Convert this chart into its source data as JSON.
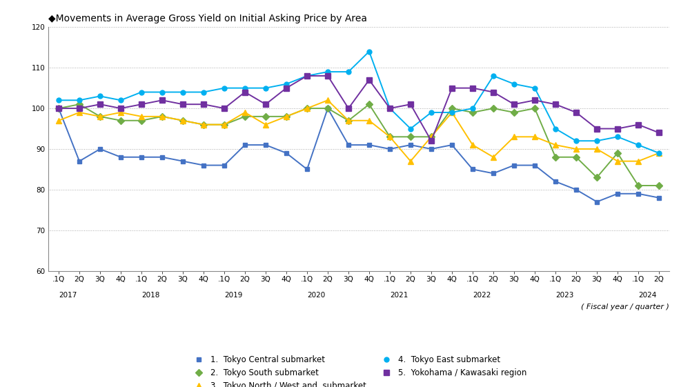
{
  "title": "◆Movements in Average Gross Yield on Initial Asking Price by Area",
  "xlabel": "( Fiscal year / quarter )",
  "ylim": [
    60,
    120
  ],
  "yticks": [
    60,
    70,
    80,
    90,
    100,
    110,
    120
  ],
  "years": [
    2017,
    2018,
    2019,
    2020,
    2021,
    2022,
    2023,
    2024
  ],
  "year_positions": [
    0,
    4,
    8,
    12,
    16,
    20,
    24,
    28
  ],
  "quarters": [
    ".1Q",
    "2Q",
    "3Q",
    "4Q",
    ".1Q",
    "2Q",
    "3Q",
    "4Q",
    ".1Q",
    "2Q",
    "3Q",
    "4Q",
    ".1Q",
    "2Q",
    "3Q",
    "4Q",
    ".1Q",
    "2Q",
    "3Q",
    "4Q",
    ".1Q",
    "2Q",
    "3Q",
    "4Q",
    ".1Q",
    "2Q",
    "3Q",
    "4Q",
    ".1Q",
    "2Q"
  ],
  "n_points": 30,
  "series": [
    {
      "name": "1.  Tokyo Central submarket",
      "color": "#4472C4",
      "marker": "s",
      "markersize": 5,
      "linewidth": 1.4,
      "values": [
        100,
        87,
        90,
        88,
        88,
        88,
        87,
        86,
        86,
        91,
        91,
        89,
        85,
        100,
        91,
        91,
        90,
        91,
        90,
        91,
        85,
        84,
        86,
        86,
        82,
        80,
        77,
        79,
        79,
        78
      ]
    },
    {
      "name": "2.  Tokyo South submarket",
      "color": "#70AD47",
      "marker": "D",
      "markersize": 5,
      "linewidth": 1.4,
      "values": [
        100,
        101,
        98,
        97,
        97,
        98,
        97,
        96,
        96,
        98,
        98,
        98,
        100,
        100,
        97,
        101,
        93,
        93,
        93,
        100,
        99,
        100,
        99,
        100,
        88,
        88,
        83,
        89,
        81,
        81
      ]
    },
    {
      "name": "3.  Tokyo North / West and  submarket",
      "color": "#FFC000",
      "marker": "^",
      "markersize": 6,
      "linewidth": 1.4,
      "values": [
        97,
        99,
        98,
        99,
        98,
        98,
        97,
        96,
        96,
        99,
        96,
        98,
        100,
        102,
        97,
        97,
        93,
        87,
        93,
        99,
        91,
        88,
        93,
        93,
        91,
        90,
        90,
        87,
        87,
        89
      ]
    },
    {
      "name": "4.  Tokyo East submarket",
      "color": "#00B0F0",
      "marker": "o",
      "markersize": 5,
      "linewidth": 1.4,
      "values": [
        102,
        102,
        103,
        102,
        104,
        104,
        104,
        104,
        105,
        105,
        105,
        106,
        108,
        109,
        109,
        114,
        100,
        95,
        99,
        99,
        100,
        108,
        106,
        105,
        95,
        92,
        92,
        93,
        91,
        89
      ]
    },
    {
      "name": "5.  Yokohama / Kawasaki region",
      "color": "#7030A0",
      "marker": "s",
      "markersize": 6,
      "linewidth": 1.4,
      "values": [
        100,
        100,
        101,
        100,
        101,
        102,
        101,
        101,
        100,
        104,
        101,
        105,
        108,
        108,
        100,
        107,
        100,
        101,
        92,
        105,
        105,
        104,
        101,
        102,
        101,
        99,
        95,
        95,
        96,
        94
      ]
    }
  ],
  "background_color": "#FFFFFF",
  "grid_color": "#AAAAAA",
  "title_fontsize": 10,
  "legend_fontsize": 8.5,
  "tick_fontsize": 7.5,
  "xlabel_fontsize": 8
}
